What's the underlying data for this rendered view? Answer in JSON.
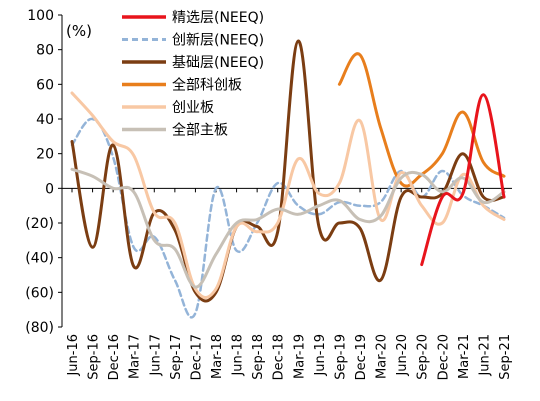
{
  "chart_data": {
    "type": "line",
    "unit_label": "(%)",
    "ylim": [
      -80,
      100
    ],
    "yticks": [
      -80,
      -60,
      -40,
      -20,
      0,
      20,
      40,
      60,
      80,
      100
    ],
    "ytick_labels": [
      "(80)",
      "(60)",
      "(40)",
      "(20)",
      "0",
      "20",
      "40",
      "60",
      "80",
      "100"
    ],
    "x_labels": [
      "Jun-16",
      "Sep-16",
      "Dec-16",
      "Mar-17",
      "Jun-17",
      "Sep-17",
      "Dec-17",
      "Mar-18",
      "Jun-18",
      "Sep-18",
      "Dec-18",
      "Mar-19",
      "Jun-19",
      "Sep-19",
      "Dec-19",
      "Mar-20",
      "Jun-20",
      "Sep-20",
      "Dec-20",
      "Mar-21",
      "Jun-21",
      "Sep-21"
    ],
    "grid": false,
    "legend_position": "top-center",
    "series": [
      {
        "name": "精选层(NEEQ)",
        "color": "#e8141c",
        "dash": "",
        "width": 3,
        "values": [
          null,
          null,
          null,
          null,
          null,
          null,
          null,
          null,
          null,
          null,
          null,
          null,
          null,
          null,
          null,
          null,
          null,
          -44,
          -5,
          -3,
          54,
          -5
        ]
      },
      {
        "name": "创新层(NEEQ)",
        "color": "#94b4d8",
        "dash": "6,4",
        "width": 2.5,
        "values": [
          25,
          40,
          18,
          -34,
          -28,
          -53,
          -72,
          0,
          -36,
          -20,
          3,
          -10,
          -15,
          -8,
          -10,
          -8,
          10,
          -5,
          10,
          -4,
          -10,
          -17
        ]
      },
      {
        "name": "基础层(NEEQ)",
        "color": "#7b3d12",
        "dash": "",
        "width": 3,
        "values": [
          27,
          -34,
          25,
          -45,
          -14,
          -24,
          -60,
          -60,
          -22,
          -22,
          -25,
          85,
          -22,
          -20,
          -23,
          -53,
          -5,
          -5,
          -3,
          20,
          -5,
          -5
        ]
      },
      {
        "name": "全部科创板",
        "color": "#e87e1c",
        "dash": "",
        "width": 3,
        "values": [
          null,
          null,
          null,
          null,
          null,
          null,
          null,
          null,
          null,
          null,
          null,
          null,
          null,
          60,
          77,
          35,
          3,
          8,
          20,
          44,
          15,
          7
        ]
      },
      {
        "name": "创业板",
        "color": "#f8c8a4",
        "dash": "",
        "width": 3,
        "values": [
          55,
          42,
          27,
          19,
          -14,
          -20,
          -58,
          -58,
          -22,
          -25,
          -20,
          17,
          -3,
          3,
          39,
          -18,
          9,
          -10,
          -20,
          8,
          -10,
          -18
        ]
      },
      {
        "name": "全部主板",
        "color": "#c7c0b6",
        "dash": "",
        "width": 3,
        "values": [
          11,
          7,
          0,
          -2,
          -30,
          -35,
          -57,
          -38,
          -20,
          -18,
          -12,
          -15,
          -10,
          -7,
          -18,
          -16,
          6,
          8,
          -2,
          6,
          -8,
          -2
        ]
      }
    ]
  }
}
